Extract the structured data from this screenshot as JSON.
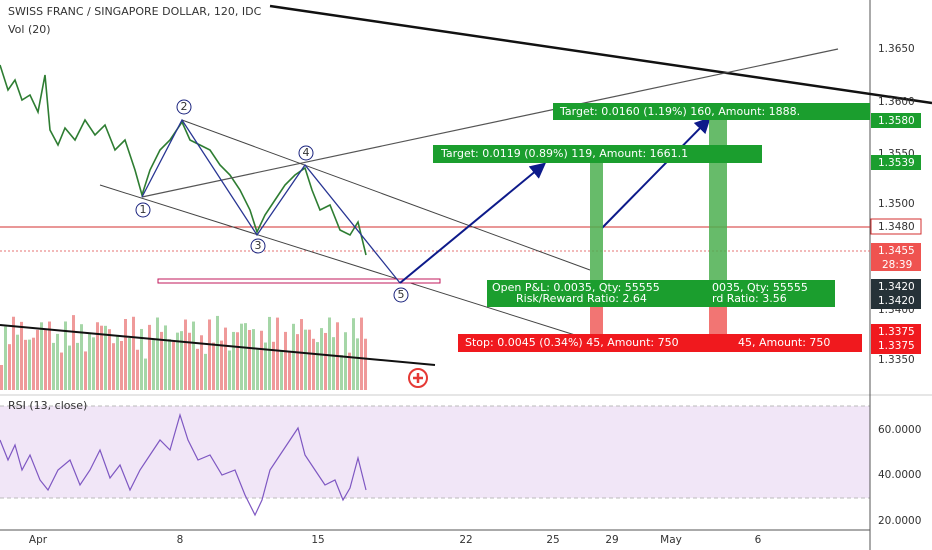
{
  "header": {
    "title": "SWISS FRANC / SINGAPORE DOLLAR, 120, IDC",
    "volume": "Vol (20)"
  },
  "price_axis": {
    "labels": [
      "1.3650",
      "1.3600",
      "1.3550",
      "1.3500",
      "1.3400",
      "1.3350"
    ],
    "tags": {
      "target_high": "1.3580",
      "target_low": "1.3539",
      "line": "1.3480",
      "last": "1.3455",
      "countdown": "28:39",
      "entry": "1.3420",
      "entry2": "1.3420",
      "stop": "1.3375",
      "stop2": "1.3375"
    }
  },
  "waves": [
    "1",
    "2",
    "3",
    "4",
    "5"
  ],
  "positions": {
    "target_long": "Target: 0.0160 (1.19%) 160, Amount: 1888.",
    "target_short": "Target: 0.0119 (0.89%) 119, Amount: 1661.1",
    "open_pl": "Open P&L: 0.0035, Qty: 55555",
    "risk_reward": "Risk/Reward Ratio: 2.64",
    "open_pl_2": "0035, Qty: 55555",
    "risk_reward_2": "rd Ratio: 3.56",
    "stop": "Stop: 0.0045 (0.34%) 45, Amount: 750",
    "stop_2": "45, Amount: 750"
  },
  "rsi": {
    "title": "RSI (13, close)",
    "labels": [
      "60.0000",
      "40.0000",
      "20.0000"
    ]
  },
  "date_axis": [
    "Apr",
    "8",
    "15",
    "22",
    "25",
    "29",
    "May",
    "6"
  ]
}
